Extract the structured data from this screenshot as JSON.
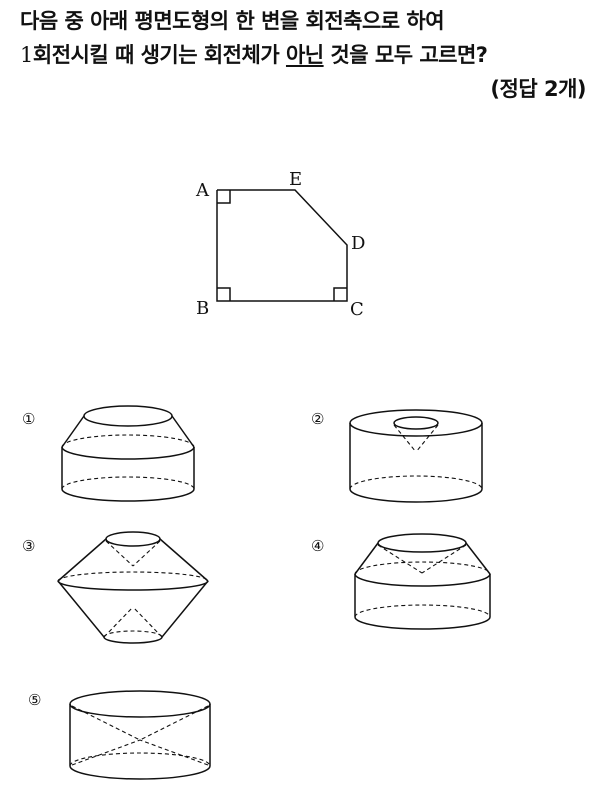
{
  "question": {
    "line1": "다음 중 아래 평면도형의 한 변을 회전축으로 하여",
    "line2_num": "1",
    "line2_a": "회전시킬 때 생기는 회전체가 ",
    "line2_ul": "아닌",
    "line2_b": " 것을 모두 고르면?",
    "answer_note": "(정답 2개)"
  },
  "figure": {
    "labels": {
      "A": "A",
      "B": "B",
      "C": "C",
      "D": "D",
      "E": "E"
    }
  },
  "options": [
    {
      "mark": "①"
    },
    {
      "mark": "②"
    },
    {
      "mark": "③"
    },
    {
      "mark": "④"
    },
    {
      "mark": "⑤"
    }
  ]
}
